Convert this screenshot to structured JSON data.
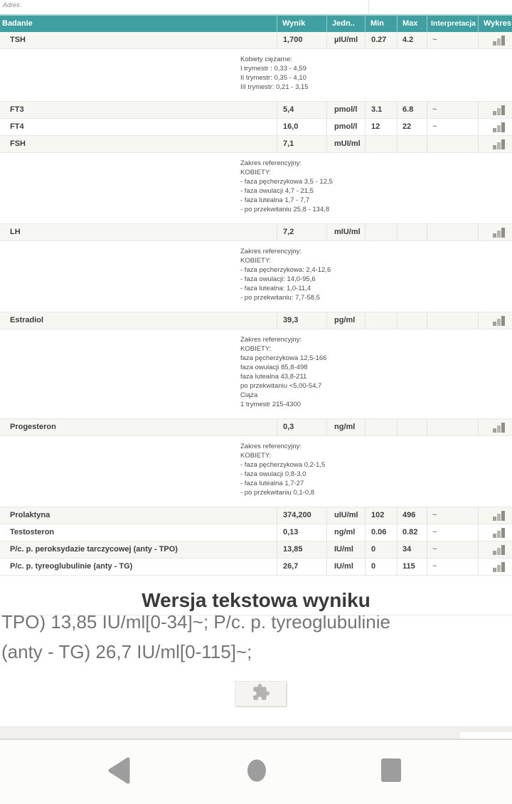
{
  "page": {
    "address_label": "Adres:"
  },
  "colors": {
    "header_teal": "#3f9fa1",
    "header_top_border": "#a6d3d3",
    "row_stripe": "#f6f6f3",
    "cell_border": "#e3e3df",
    "text_dark": "#3d3d3d",
    "reference_text": "#4e4e4e",
    "muted_text": "#757575",
    "icon_gray": "#9d9d9d"
  },
  "icons": {
    "chart": "bar-chart-icon",
    "plugin": "puzzle-icon",
    "nav_back": "back-triangle-icon",
    "nav_home": "home-circle-icon",
    "nav_recents": "recents-square-icon"
  },
  "table": {
    "headers": [
      "Badanie",
      "Wynik",
      "Jedn..",
      "Min",
      "Max",
      "Interpretacja",
      "Wykres"
    ],
    "rows": [
      {
        "type": "result",
        "name": "TSH",
        "wynik": "1,700",
        "jedn": "µIU/ml",
        "min": "0.27",
        "max": "4.2",
        "interp": "~"
      },
      {
        "type": "ref",
        "lines": [
          "Kobiety ciężarne:",
          "I trymestr : 0,33 - 4,59",
          "II trymestr: 0,35 - 4,10",
          "III trymestr: 0,21 - 3,15"
        ]
      },
      {
        "type": "result",
        "name": "FT3",
        "wynik": "5,4",
        "jedn": "pmol/l",
        "min": "3.1",
        "max": "6.8",
        "interp": "~"
      },
      {
        "type": "result",
        "name": "FT4",
        "wynik": "16,0",
        "jedn": "pmol/l",
        "min": "12",
        "max": "22",
        "interp": "~"
      },
      {
        "type": "result",
        "name": "FSH",
        "wynik": "7,1",
        "jedn": "mUI/ml",
        "min": "",
        "max": "",
        "interp": ""
      },
      {
        "type": "ref",
        "lines": [
          "Zakres referencyjny:",
          "KOBIETY:",
          "- faza pęcherzykowa 3,5 - 12,5",
          "- faza owulacji 4,7 - 21,5",
          "- faza lutealna 1,7 - 7,7",
          "- po przekwitaniu 25,8 - 134,8"
        ]
      },
      {
        "type": "result",
        "name": "LH",
        "wynik": "7,2",
        "jedn": "mIU/ml",
        "min": "",
        "max": "",
        "interp": ""
      },
      {
        "type": "ref",
        "lines": [
          "Zakres referencyjny:",
          "KOBIETY:",
          "- faza pęcherzykowa: 2,4-12,6",
          "- faza owulacji: 14,0-95,6",
          "- faza lutealna: 1,0-11,4",
          "- po przekwitaniu: 7,7-58,5"
        ]
      },
      {
        "type": "result",
        "name": "Estradiol",
        "wynik": "39,3",
        "jedn": "pg/ml",
        "min": "",
        "max": "",
        "interp": ""
      },
      {
        "type": "ref",
        "lines": [
          "Zakres referencyjny:",
          "KOBIETY:",
          "faza pęcherzykowa 12,5-166",
          "faza owulacji 85,8-498",
          "faza lutealna 43,8-211",
          "po przekwitaniu <5,00-54,7",
          "Ciąża",
          "1 trymestr 215-4300"
        ]
      },
      {
        "type": "result",
        "name": "Progesteron",
        "wynik": "0,3",
        "jedn": "ng/ml",
        "min": "",
        "max": "",
        "interp": ""
      },
      {
        "type": "ref",
        "lines": [
          "Zakres referencyjny:",
          "KOBIETY:",
          "- faza pęcherzykowa 0,2-1,5",
          "- faza owulacji 0,8-3,0",
          "- faza lutealna 1,7-27",
          "- po przekwitaniu 0,1-0,8"
        ]
      },
      {
        "type": "result",
        "name": "Prolaktyna",
        "wynik": "374,200",
        "jedn": "uIU/ml",
        "min": "102",
        "max": "496",
        "interp": "~"
      },
      {
        "type": "result",
        "name": "Testosteron",
        "wynik": "0,13",
        "jedn": "ng/ml",
        "min": "0.06",
        "max": "0.82",
        "interp": "~"
      },
      {
        "type": "result",
        "name": "P/c. p. peroksydazie tarczycowej (anty - TPO)",
        "wynik": "13,85",
        "jedn": "IU/ml",
        "min": "0",
        "max": "34",
        "interp": "~"
      },
      {
        "type": "result",
        "name": "P/c. p. tyreoglubulinie (anty - TG)",
        "wynik": "26,7",
        "jedn": "IU/ml",
        "min": "0",
        "max": "115",
        "interp": "~"
      }
    ]
  },
  "text_section": {
    "heading": "Wersja tekstowa wyniku",
    "clipped_line": "TPO) 13,85 IU/ml[0-34]~; P/c. p. tyreoglubulinie",
    "line2": "(anty - TG) 26,7 IU/ml[0-115]~;"
  }
}
